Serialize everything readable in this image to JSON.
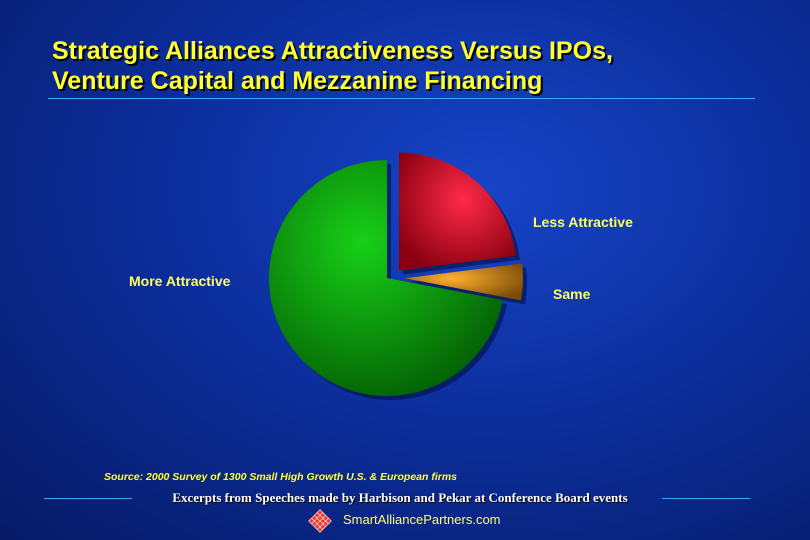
{
  "title": {
    "line1": "Strategic Alliances Attractiveness Versus IPOs,",
    "line2": "Venture Capital and Mezzanine Financing"
  },
  "chart_data": {
    "type": "pie",
    "slices": [
      {
        "label": "Less Attractive",
        "value": 23,
        "color": "#e0102a",
        "exploded": true
      },
      {
        "label": "Same",
        "value": 5,
        "color": "#d98a10",
        "exploded": true
      },
      {
        "label": "More Attractive",
        "value": 72,
        "color": "#10b010",
        "exploded": false
      }
    ],
    "legend": "none",
    "three_d": true
  },
  "source": "Source: 2000 Survey of 1300 Small High Growth U.S. & European firms",
  "footer": {
    "text": "Excerpts from Speeches made by Harbison and Pekar at Conference Board events",
    "website": "SmartAlliancePartners.com"
  },
  "colors": {
    "title": "#ffff33",
    "label": "#ffff66",
    "background": "#0c2f9e",
    "rule": "#33aaff"
  }
}
